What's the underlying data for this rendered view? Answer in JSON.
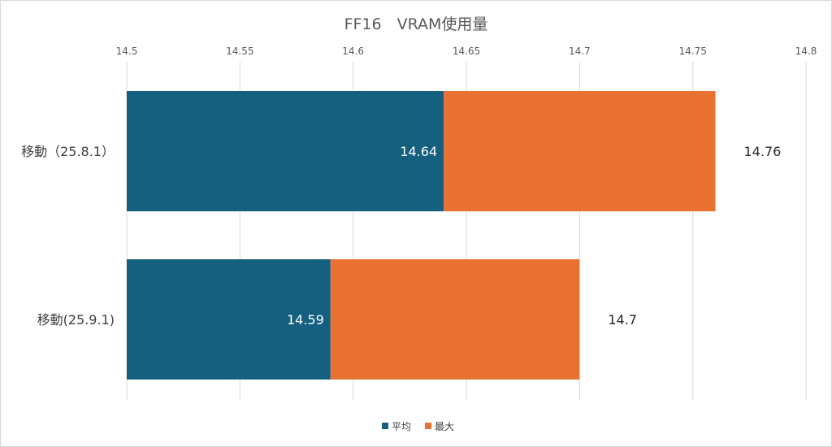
{
  "chart_data": {
    "type": "bar",
    "orientation": "horizontal",
    "title": "FF16　VRAM使用量",
    "xlabel": "",
    "ylabel": "",
    "xlim": [
      14.5,
      14.8
    ],
    "ticks": [
      "14.5",
      "14.55",
      "14.6",
      "14.65",
      "14.7",
      "14.75",
      "14.8"
    ],
    "tick_values": [
      14.5,
      14.55,
      14.6,
      14.65,
      14.7,
      14.75,
      14.8
    ],
    "grid": true,
    "legend_position": "bottom",
    "categories": [
      "移動（25.8.1）",
      "移動(25.9.1)"
    ],
    "series": [
      {
        "name": "平均",
        "values": [
          14.64,
          14.59
        ],
        "labels": [
          "14.64",
          "14.59"
        ],
        "color": "#16607f"
      },
      {
        "name": "最大",
        "values": [
          14.76,
          14.7
        ],
        "labels": [
          "14.76",
          "14.7"
        ],
        "color": "#e97132"
      }
    ]
  }
}
